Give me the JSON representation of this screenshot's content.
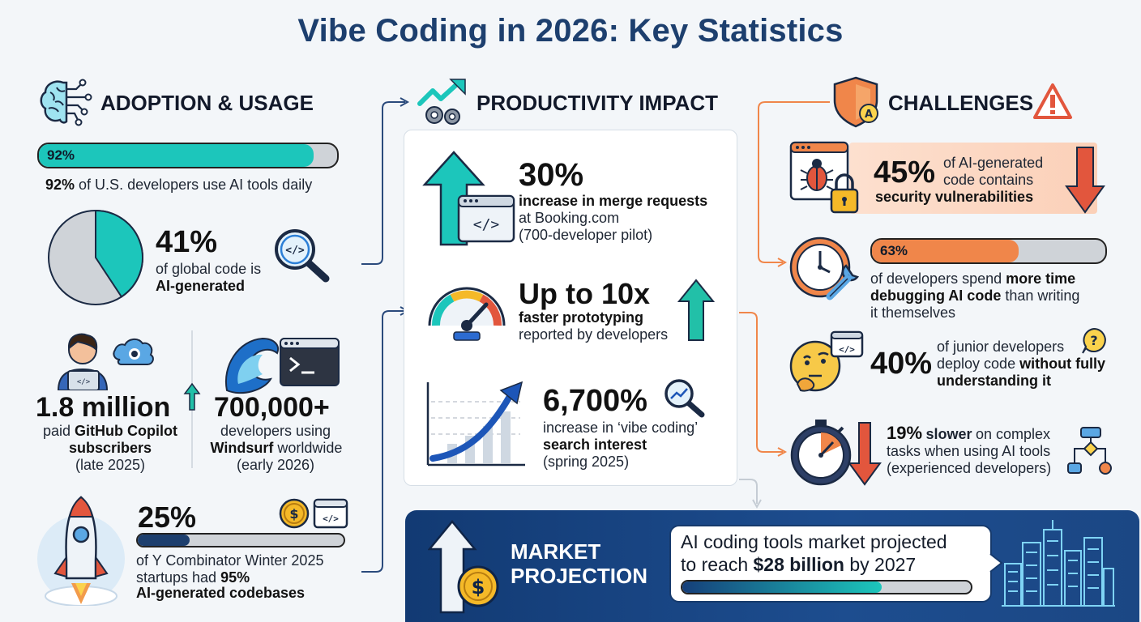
{
  "title": "Vibe Coding in 2026: Key Statistics",
  "colors": {
    "teal": "#1cc6bb",
    "navy": "#1d3f6e",
    "orange": "#f0864a",
    "red": "#e24a2c",
    "green": "#22c0a8",
    "grey": "#cfd3d8"
  },
  "adoption": {
    "heading": "ADOPTION & USAGE",
    "icon": "brain-circuit-icon",
    "stat1": {
      "bar_label": "92%",
      "value": 92,
      "caption_bold": "92%",
      "caption_rest": "of U.S. developers use AI tools daily"
    },
    "stat2": {
      "big": "41%",
      "value": 41,
      "line1": "of global code is",
      "line2": "AI-generated"
    },
    "stat3": {
      "big": "1.8 million",
      "line1": "paid",
      "line1_bold": "GitHub Copilot",
      "line2": "subscribers",
      "line3": "(late 2025)"
    },
    "stat4": {
      "big": "700,000+",
      "line1": "developers using",
      "line2_bold": "Windsurf",
      "line2_rest": "worldwide",
      "line3": "(early 2026)"
    },
    "stat5": {
      "big": "25%",
      "value": 25,
      "line1": "of Y Combinator Winter 2025",
      "line2_rest": "startups had",
      "line2_bold": "95%",
      "line3": "AI-generated codebases"
    }
  },
  "productivity": {
    "heading": "PRODUCTIVITY IMPACT",
    "icon": "trend-gears-icon",
    "stat1": {
      "big": "30%",
      "line1": "increase in merge requests",
      "line2": "at Booking.com",
      "line3": "(700-developer pilot)"
    },
    "stat2": {
      "big": "Up to 10x",
      "line1": "faster prototyping",
      "line2": "reported by developers"
    },
    "stat3": {
      "big": "6,700%",
      "line1": "increase in ‘vibe coding’",
      "line2": "search interest",
      "line3": "(spring 2025)"
    }
  },
  "challenges": {
    "heading": "CHALLENGES",
    "icon": "shield-warning-icon",
    "stat1": {
      "big": "45%",
      "line1": "of AI-generated",
      "line2": "code contains",
      "line3": "security vulnerabilities"
    },
    "stat2": {
      "bar_label": "63%",
      "value": 63,
      "line1_rest": "of developers spend",
      "line1_bold": "more time",
      "line2_bold": "debugging AI code",
      "line2_rest": "than writing",
      "line3": "it themselves"
    },
    "stat3": {
      "big": "40%",
      "line1": "of junior developers",
      "line2_rest": "deploy code",
      "line2_bold": "without fully",
      "line3": "understanding it"
    },
    "stat4": {
      "big": "19%",
      "big_rest": "slower",
      "line1_rest": "on complex",
      "line2": "tasks when using AI tools",
      "line3": "(experienced developers)"
    }
  },
  "market": {
    "heading1": "MARKET",
    "heading2": "PROJECTION",
    "line1": "AI coding tools market projected",
    "line2_rest": "to reach",
    "line2_bold": "$28 billion",
    "line2_end": "by 2027",
    "progress": 0.69
  }
}
